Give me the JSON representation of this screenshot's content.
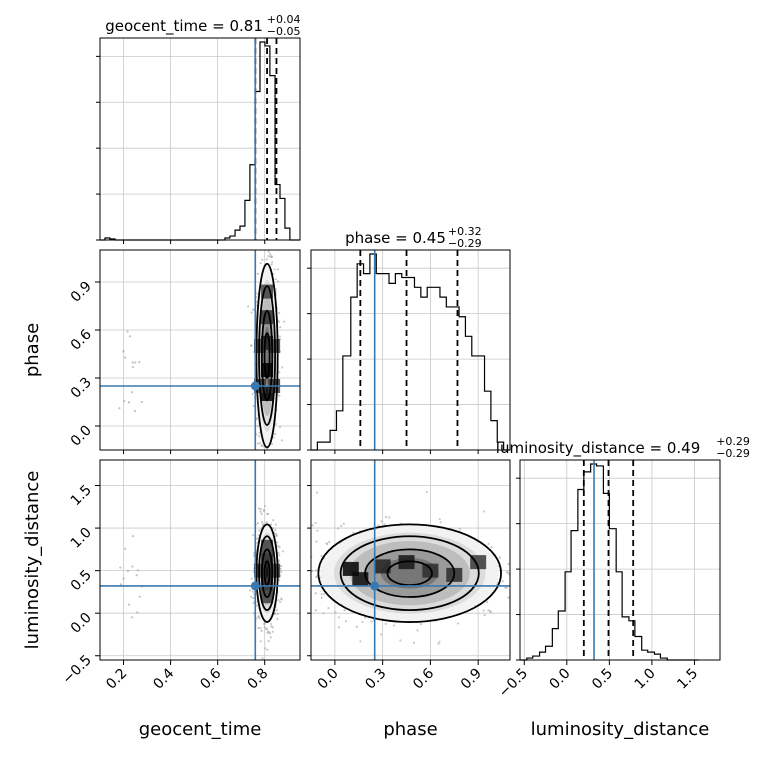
{
  "chart_data": {
    "type": "corner",
    "parameters": [
      "geocent_time",
      "phase",
      "luminosity_distance"
    ],
    "titles": [
      {
        "param": "geocent_time",
        "median": "0.81",
        "plus": "+0.04",
        "minus": "−0.05"
      },
      {
        "param": "phase",
        "median": "0.45",
        "plus": "+0.32",
        "minus": "−0.29"
      },
      {
        "param": "luminosity_distance",
        "median": "0.49",
        "plus": "+0.29",
        "minus": "−0.29"
      }
    ],
    "truths": {
      "geocent_time": 0.76,
      "phase": 0.25,
      "luminosity_distance": 0.32
    },
    "quantiles": {
      "geocent_time": [
        0.76,
        0.81,
        0.85
      ],
      "phase": [
        0.16,
        0.45,
        0.77
      ],
      "luminosity_distance": [
        0.2,
        0.49,
        0.78
      ]
    },
    "ranges": {
      "geocent_time": [
        0.1,
        0.95
      ],
      "phase": [
        -0.15,
        1.1
      ],
      "luminosity_distance": [
        -0.55,
        1.8
      ]
    },
    "ticks": {
      "geocent_time": [
        0.2,
        0.4,
        0.6,
        0.8
      ],
      "phase": [
        0.0,
        0.3,
        0.6,
        0.9
      ],
      "luminosity_distance": [
        -0.5,
        0.0,
        0.5,
        1.0,
        1.5
      ]
    },
    "tick_labels": {
      "geocent_time": [
        "0.2",
        "0.4",
        "0.6",
        "0.8"
      ],
      "phase": [
        "0.0",
        "0.3",
        "0.6",
        "0.9"
      ],
      "luminosity_distance": [
        "−0.5",
        "0.0",
        "0.5",
        "1.0",
        "1.5"
      ]
    },
    "histograms": {
      "geocent_time": {
        "edges": [
          0.1,
          0.121,
          0.142,
          0.164,
          0.185,
          0.206,
          0.227,
          0.249,
          0.27,
          0.291,
          0.312,
          0.334,
          0.355,
          0.376,
          0.397,
          0.419,
          0.44,
          0.461,
          0.482,
          0.504,
          0.525,
          0.546,
          0.567,
          0.589,
          0.61,
          0.631,
          0.652,
          0.674,
          0.695,
          0.716,
          0.737,
          0.759,
          0.78,
          0.801,
          0.822,
          0.844,
          0.865,
          0.886,
          0.907,
          0.929,
          0.95
        ],
        "counts": [
          0,
          0.01,
          0.005,
          0,
          0,
          0,
          0,
          0,
          0,
          0,
          0,
          0,
          0,
          0,
          0,
          0,
          0,
          0,
          0,
          0,
          0,
          0,
          0,
          0,
          0,
          0.01,
          0.02,
          0.05,
          0.07,
          0.2,
          0.38,
          0.75,
          1.0,
          0.98,
          0.83,
          0.28,
          0.21,
          0.06,
          0,
          0
        ]
      },
      "phase": {
        "edges": [
          -0.15,
          -0.11,
          -0.07,
          -0.03,
          0.01,
          0.05,
          0.1,
          0.14,
          0.18,
          0.22,
          0.26,
          0.3,
          0.34,
          0.38,
          0.42,
          0.46,
          0.5,
          0.54,
          0.58,
          0.62,
          0.66,
          0.7,
          0.74,
          0.78,
          0.82,
          0.86,
          0.9,
          0.94,
          0.98,
          1.02,
          1.06,
          1.1
        ],
        "counts": [
          0,
          0.04,
          0.04,
          0.1,
          0.2,
          0.48,
          0.78,
          0.95,
          0.9,
          1.0,
          0.9,
          0.9,
          0.85,
          0.9,
          0.88,
          0.88,
          0.83,
          0.78,
          0.83,
          0.83,
          0.78,
          0.73,
          0.73,
          0.68,
          0.58,
          0.48,
          0.48,
          0.3,
          0.15,
          0.04,
          0
        ]
      },
      "luminosity_distance": {
        "edges": [
          -0.55,
          -0.47,
          -0.4,
          -0.32,
          -0.25,
          -0.17,
          -0.1,
          -0.02,
          0.05,
          0.13,
          0.2,
          0.28,
          0.35,
          0.43,
          0.5,
          0.58,
          0.65,
          0.73,
          0.8,
          0.88,
          0.95,
          1.03,
          1.1,
          1.18,
          1.25,
          1.33,
          1.4,
          1.48,
          1.55
        ],
        "counts": [
          0,
          0.01,
          0.02,
          0.04,
          0.07,
          0.16,
          0.25,
          0.45,
          0.66,
          0.87,
          0.96,
          1.0,
          0.99,
          0.85,
          0.67,
          0.45,
          0.22,
          0.2,
          0.12,
          0.05,
          0.04,
          0.03,
          0.01,
          0,
          0,
          0,
          0,
          0
        ]
      }
    },
    "posterior_2d": {
      "geocent_time|phase": {
        "mean": [
          0.81,
          0.44
        ],
        "sd": [
          0.022,
          0.28
        ],
        "density_cells": [
          [
            0.81,
            0.2,
            1.0
          ],
          [
            0.81,
            0.35,
            1.0
          ],
          [
            0.81,
            0.52,
            0.7
          ],
          [
            0.81,
            0.68,
            0.55
          ],
          [
            0.81,
            0.84,
            0.45
          ],
          [
            0.78,
            0.25,
            0.5
          ],
          [
            0.84,
            0.25,
            0.5
          ],
          [
            0.78,
            0.5,
            0.4
          ],
          [
            0.84,
            0.5,
            0.4
          ]
        ]
      },
      "geocent_time|luminosity_distance": {
        "mean": [
          0.81,
          0.47
        ],
        "sd": [
          0.022,
          0.28
        ],
        "density_cells": [
          [
            0.81,
            0.5,
            1.0
          ],
          [
            0.81,
            0.62,
            0.6
          ],
          [
            0.81,
            0.35,
            0.6
          ],
          [
            0.81,
            0.78,
            0.4
          ],
          [
            0.81,
            0.2,
            0.4
          ],
          [
            0.78,
            0.5,
            0.45
          ],
          [
            0.84,
            0.5,
            0.45
          ]
        ]
      },
      "phase|luminosity_distance": {
        "mean": [
          0.47,
          0.47
        ],
        "sd": [
          0.28,
          0.28
        ],
        "density_cells": [
          [
            0.1,
            0.52,
            1.0
          ],
          [
            0.16,
            0.4,
            0.9
          ],
          [
            0.3,
            0.55,
            0.7
          ],
          [
            0.45,
            0.6,
            0.8
          ],
          [
            0.6,
            0.5,
            0.6
          ],
          [
            0.75,
            0.45,
            0.6
          ],
          [
            0.9,
            0.6,
            0.5
          ]
        ]
      }
    },
    "grid": true
  }
}
